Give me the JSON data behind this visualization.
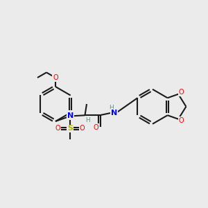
{
  "background_color": "#ebebeb",
  "bond_color": "#1a1a1a",
  "bond_width": 1.5,
  "atom_colors": {
    "N": "#0000ff",
    "O": "#ff0000",
    "S": "#b8b800",
    "H": "#4a9a9a",
    "C": "#1a1a1a"
  },
  "figsize": [
    3.0,
    3.0
  ],
  "dpi": 100,
  "xlim": [
    0,
    12
  ],
  "ylim": [
    2,
    9
  ]
}
